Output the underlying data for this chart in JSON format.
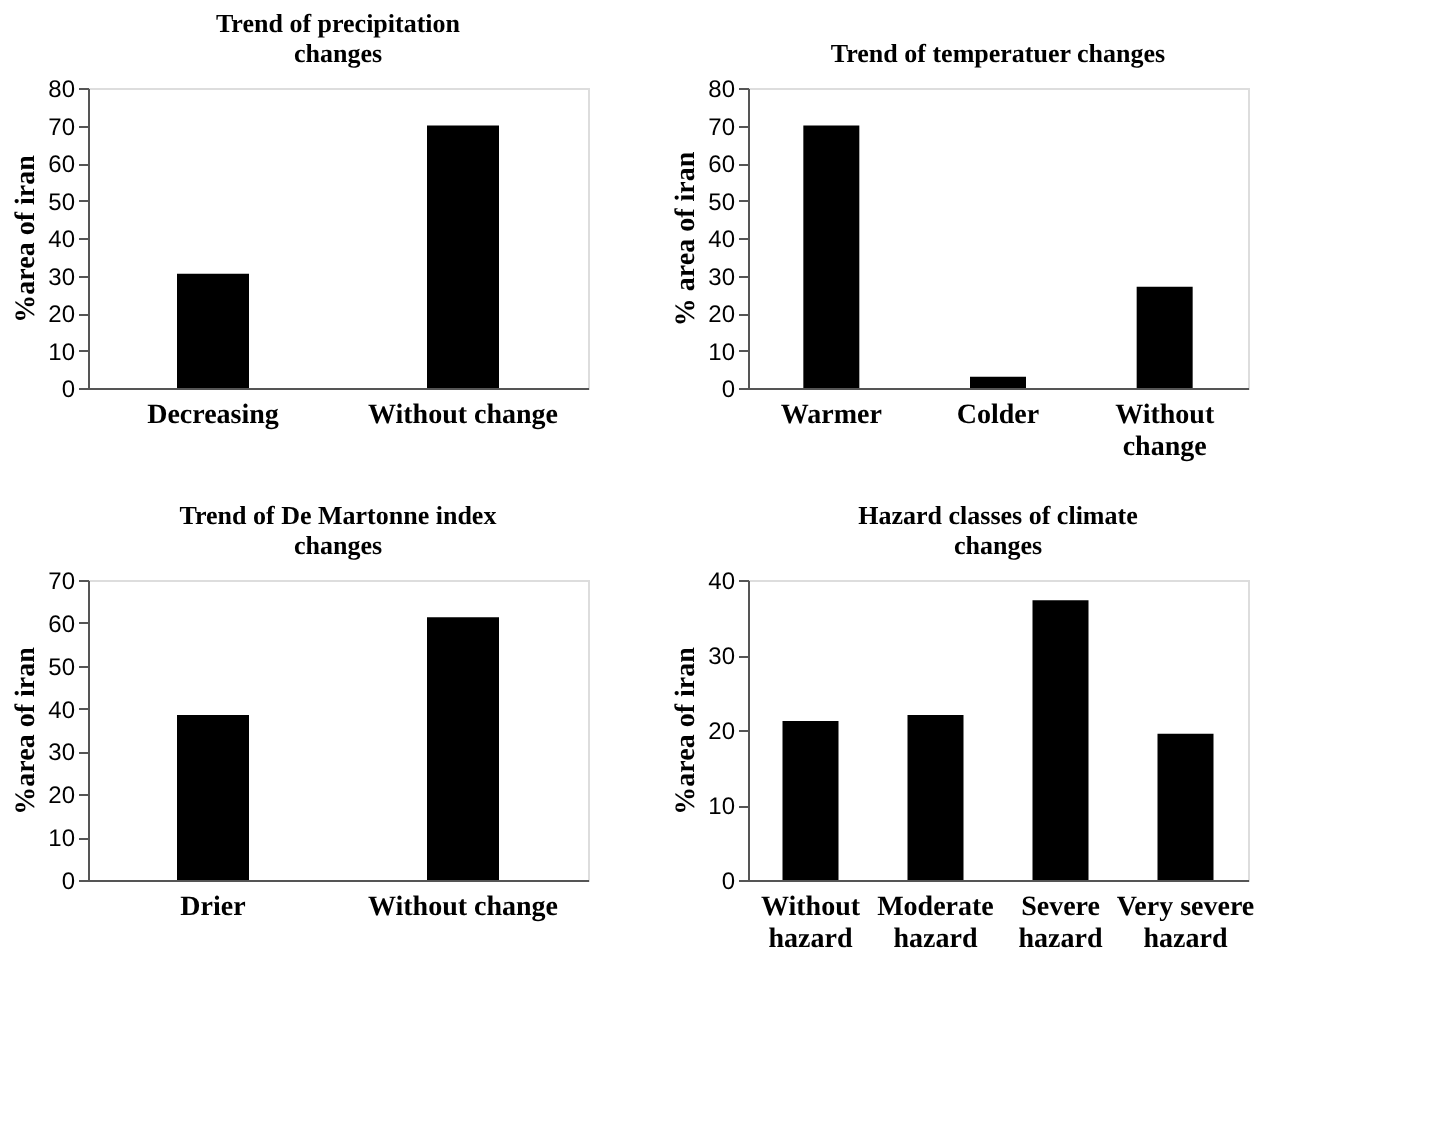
{
  "chart_data": [
    {
      "type": "bar",
      "title": "Trend of precipitation changes",
      "ylabel": "%area of iran",
      "categories": [
        "Decreasing",
        "Without change"
      ],
      "values": [
        30.5,
        70
      ],
      "color": "#000000",
      "ylim": [
        0,
        80
      ],
      "yticks": [
        0,
        10,
        20,
        30,
        40,
        50,
        60,
        70,
        80
      ],
      "grid": false
    },
    {
      "type": "bar",
      "title": "Trend of temperatuer changes",
      "ylabel": "% area of iran",
      "categories": [
        "Warmer",
        "Colder",
        "Without change"
      ],
      "values": [
        70,
        3,
        27
      ],
      "color": "#000000",
      "ylim": [
        0,
        80
      ],
      "yticks": [
        0,
        10,
        20,
        30,
        40,
        50,
        60,
        70,
        80
      ],
      "grid": false
    },
    {
      "type": "bar",
      "title": "Trend of De Martonne index changes",
      "ylabel": "%area of iran",
      "categories": [
        "Drier",
        "Without change"
      ],
      "values": [
        38.5,
        61.3
      ],
      "color": "#000000",
      "ylim": [
        0,
        70
      ],
      "yticks": [
        0,
        10,
        20,
        30,
        40,
        50,
        60,
        70
      ],
      "grid": false
    },
    {
      "type": "bar",
      "title": "Hazard classes of climate changes",
      "ylabel": "%area of iran",
      "categories": [
        "Without hazard",
        "Moderate hazard",
        "Severe hazard",
        "Very severe hazard"
      ],
      "values": [
        21.2,
        22,
        37.3,
        19.5
      ],
      "color": "#000000",
      "ylim": [
        0,
        40
      ],
      "yticks": [
        0,
        10,
        20,
        30,
        40
      ],
      "grid": false
    }
  ]
}
